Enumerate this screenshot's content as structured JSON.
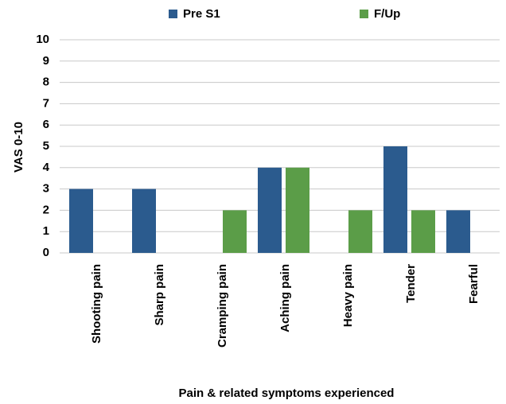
{
  "chart_data": {
    "type": "bar",
    "categories": [
      "Shooting pain",
      "Sharp pain",
      "Cramping pain",
      "Aching pain",
      "Heavy pain",
      "Tender",
      "Fearful"
    ],
    "series": [
      {
        "name": "Pre S1",
        "color": "#2b5b8e",
        "values": [
          3,
          3,
          0,
          4,
          0,
          5,
          2
        ]
      },
      {
        "name": "F/Up",
        "color": "#5b9d48",
        "values": [
          0,
          0,
          2,
          4,
          2,
          2,
          0
        ]
      }
    ],
    "y_label": "VAS 0-10",
    "x_label": "Pain & related  symptoms experienced",
    "ylim": [
      0,
      10
    ],
    "yticks": [
      0,
      1,
      2,
      3,
      4,
      5,
      6,
      7,
      8,
      9,
      10
    ],
    "grid": true,
    "legend": "top"
  }
}
